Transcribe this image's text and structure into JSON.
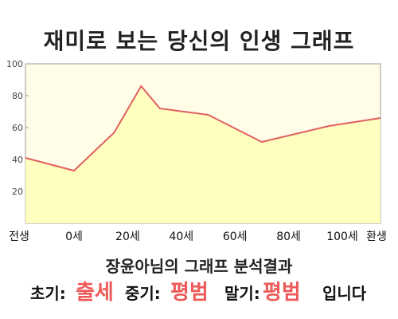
{
  "title": "재미로 보는 당신의 인생 그래프",
  "chart_data": {
    "type": "area",
    "title": "재미로 보는 당신의 인생 그래프",
    "xlabel": "",
    "ylabel": "",
    "x_ticks": [
      "전생",
      "0세",
      "20세",
      "40세",
      "60세",
      "80세",
      "100세",
      "환생"
    ],
    "y_ticks": [
      20,
      40,
      60,
      80,
      100
    ],
    "ylim": [
      0,
      100
    ],
    "grid": false,
    "points": [
      {
        "x": "전생",
        "y": 41
      },
      {
        "x": "0세",
        "y": 33
      },
      {
        "x": "15세",
        "y": 57
      },
      {
        "x": "25세",
        "y": 86
      },
      {
        "x": "32세",
        "y": 72
      },
      {
        "x": "50세",
        "y": 68
      },
      {
        "x": "70세",
        "y": 51
      },
      {
        "x": "95세",
        "y": 61
      },
      {
        "x": "환생",
        "y": 66
      }
    ],
    "line_color": "#e06060",
    "fill_color": "#ffffc0",
    "plot_background": "#fffde8"
  },
  "result": {
    "heading": "장윤아님의 그래프 분석결과",
    "early_label": "초기:",
    "early_value": "출세",
    "mid_label": "중기:",
    "mid_value": "평범",
    "late_label": "말기:",
    "late_value": "평범",
    "suffix": "입니다"
  },
  "colors": {
    "highlight": "#ee5a5a"
  }
}
